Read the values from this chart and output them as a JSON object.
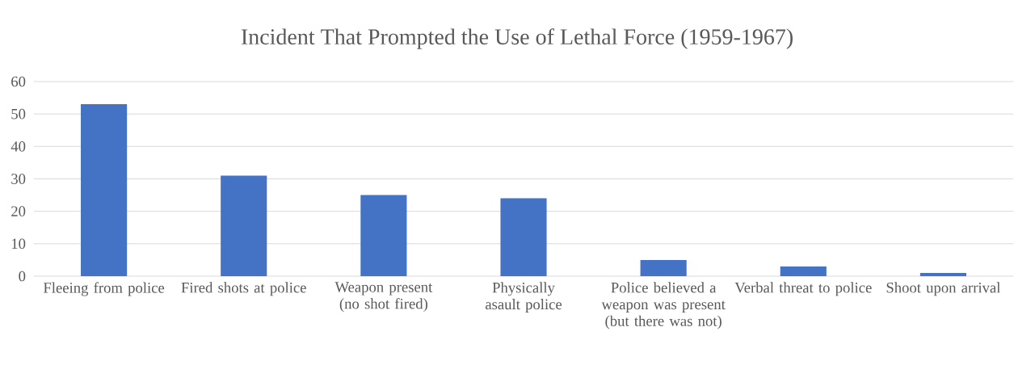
{
  "chart_data": {
    "type": "bar",
    "title": "Incident That Prompted the Use of Lethal Force (1959-1967)",
    "categories": [
      "Fleeing from police",
      "Fired shots at police",
      "Weapon present (no shot fired)",
      "Physically asault police",
      "Police believed a weapon was present (but there was not)",
      "Verbal threat to police",
      "Shoot upon arrival"
    ],
    "values": [
      53,
      31,
      25,
      24,
      5,
      3,
      1
    ],
    "color": "#4472c4",
    "ylim": [
      0,
      60
    ],
    "yticks": [
      0,
      10,
      20,
      30,
      40,
      50,
      60
    ],
    "grid": "y"
  }
}
